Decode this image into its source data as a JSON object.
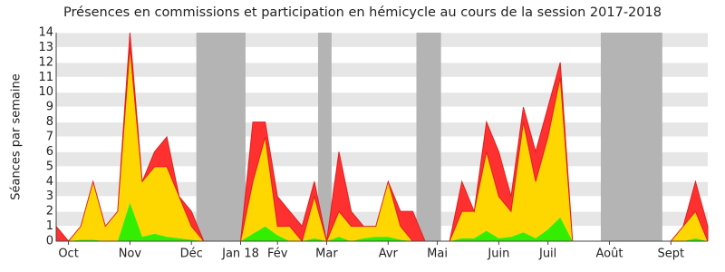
{
  "chart_data": {
    "type": "stacked-area",
    "title": "Présences en commissions et participation en hémicycle au cours de la session 2017-2018",
    "y_label": "Séances par semaine",
    "categories": [
      null,
      "Oct",
      null,
      null,
      null,
      null,
      "Nov",
      null,
      null,
      null,
      null,
      "Déc",
      null,
      null,
      null,
      "Jan 18",
      null,
      null,
      "Fév",
      null,
      null,
      null,
      "Mar",
      null,
      null,
      null,
      null,
      "Avr",
      null,
      null,
      null,
      "Mai",
      null,
      null,
      null,
      null,
      "Juin",
      null,
      null,
      null,
      "Juil",
      null,
      null,
      null,
      null,
      "Août",
      null,
      null,
      null,
      null,
      "Sept",
      null,
      null,
      null
    ],
    "series": [
      {
        "color": "#33ee00",
        "values": [
          0,
          0,
          0.1,
          0.1,
          0,
          0,
          2.6,
          0.3,
          0.5,
          0.3,
          0.2,
          0.1,
          0,
          0,
          0,
          0,
          0.5,
          1,
          0.4,
          0,
          0,
          0.2,
          0,
          0.3,
          0,
          0.2,
          0.3,
          0.3,
          0.1,
          0,
          0,
          0,
          0,
          0.2,
          0.2,
          0.7,
          0.2,
          0.3,
          0.6,
          0.2,
          0.8,
          1.6,
          0,
          0,
          0,
          0,
          0,
          0,
          0,
          0,
          0,
          0,
          0.2,
          0
        ]
      },
      {
        "color": "#ffd700",
        "values": [
          0,
          0,
          0.9,
          3.9,
          1,
          2,
          10.4,
          3.7,
          4.5,
          4.7,
          2.8,
          0.9,
          0,
          0,
          0,
          0,
          3.5,
          6,
          0.6,
          1,
          0,
          2.8,
          0,
          1.7,
          1,
          0.8,
          0.7,
          3.7,
          0.9,
          0,
          0,
          0,
          0,
          1.8,
          1.8,
          5.3,
          2.8,
          1.7,
          7.4,
          3.8,
          6.2,
          9.4,
          0,
          0,
          0,
          0,
          0,
          0,
          0,
          0,
          0,
          1,
          1.8,
          0
        ]
      },
      {
        "color": "#ff3030",
        "values": [
          1,
          0,
          0,
          0,
          0,
          0,
          1,
          0,
          1,
          2,
          0,
          1,
          0,
          0,
          0,
          0,
          4,
          1,
          2,
          1,
          1,
          1,
          0,
          4,
          1,
          0,
          0,
          0,
          1,
          2,
          0,
          0,
          0,
          2,
          0,
          2,
          3,
          1,
          1,
          2,
          2,
          1,
          0,
          0,
          0,
          0,
          0,
          0,
          0,
          0,
          0,
          0,
          2,
          1
        ]
      }
    ],
    "recess": [
      [
        11.4,
        15.4
      ],
      [
        21.3,
        22.4
      ],
      [
        29.3,
        31.3
      ],
      [
        44.3,
        49.3
      ]
    ],
    "recess_color": "#b4b4b4",
    "ylim": [
      0,
      14
    ],
    "yticks": [
      0,
      1,
      2,
      3,
      4,
      5,
      6,
      7,
      8,
      9,
      10,
      11,
      12,
      13,
      14
    ],
    "grid": true
  }
}
